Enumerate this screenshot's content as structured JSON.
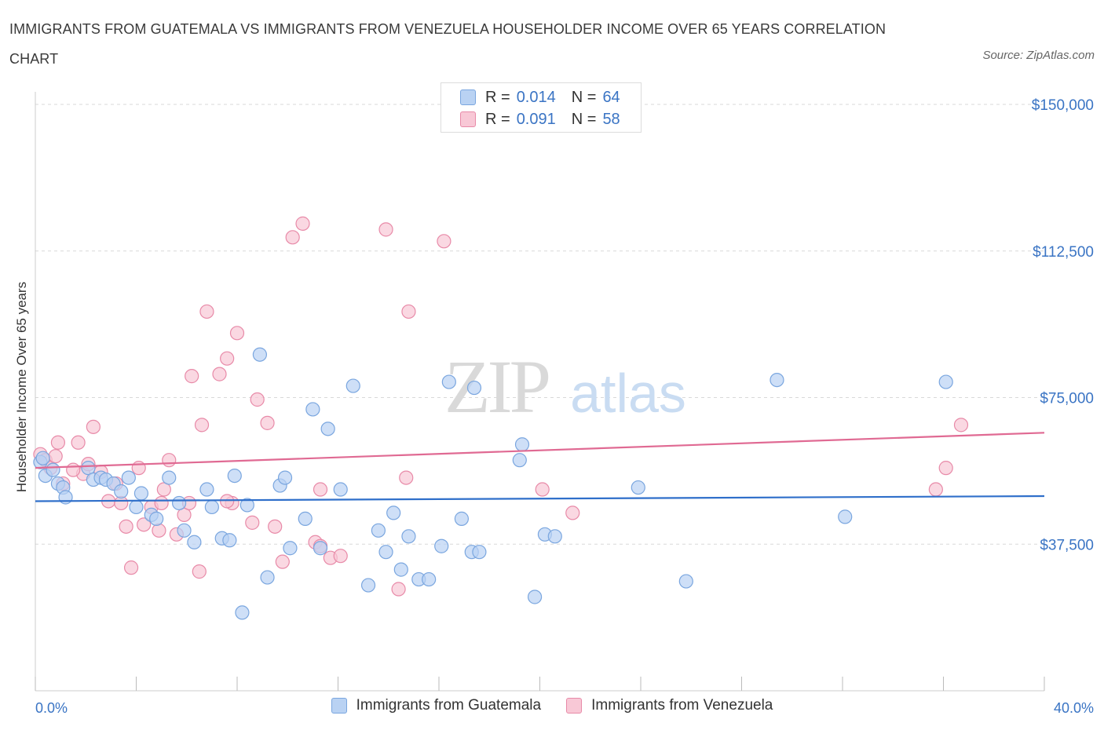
{
  "title": "IMMIGRANTS FROM GUATEMALA VS IMMIGRANTS FROM VENEZUELA HOUSEHOLDER INCOME OVER 65 YEARS CORRELATION CHART",
  "source": "Source: ZipAtlas.com",
  "legend_top": {
    "rows": [
      {
        "r_label": "R =",
        "r_value": "0.014",
        "n_label": "N =",
        "n_value": "64"
      },
      {
        "r_label": "R =",
        "r_value": "0.091",
        "n_label": "N =",
        "n_value": "58"
      }
    ]
  },
  "legend_bottom": [
    "Immigrants from Guatemala",
    "Immigrants from Venezuela"
  ],
  "colors": {
    "guatemala_fill": "#b9d2f3",
    "guatemala_stroke": "#7aa6df",
    "guatemala_line": "#2f6fca",
    "venezuela_fill": "#f8c8d6",
    "venezuela_stroke": "#e88aa8",
    "venezuela_line": "#e06a93",
    "tick_text": "#3a74c4",
    "grid": "#d8d8d8"
  },
  "chart_data": {
    "type": "scatter",
    "title": "IMMIGRANTS FROM GUATEMALA VS IMMIGRANTS FROM VENEZUELA HOUSEHOLDER INCOME OVER 65 YEARS CORRELATION CHART",
    "xlabel": "",
    "ylabel": "Householder Income Over 65 years",
    "xlim": [
      0,
      40
    ],
    "ylim": [
      0,
      150000
    ],
    "x_tick_labels": [
      "0.0%",
      "40.0%"
    ],
    "y_ticks": [
      37500,
      75000,
      112500,
      150000
    ],
    "y_tick_labels": [
      "$37,500",
      "$75,000",
      "$112,500",
      "$150,000"
    ],
    "grid": true,
    "legend_position": "top-center",
    "series": [
      {
        "name": "Immigrants from Guatemala",
        "points": [
          [
            0.2,
            58500
          ],
          [
            0.3,
            59500
          ],
          [
            0.4,
            55000
          ],
          [
            0.7,
            56500
          ],
          [
            0.9,
            53000
          ],
          [
            1.1,
            52000
          ],
          [
            1.2,
            49500
          ],
          [
            2.1,
            57000
          ],
          [
            2.3,
            54000
          ],
          [
            2.6,
            54500
          ],
          [
            2.8,
            54000
          ],
          [
            3.1,
            53000
          ],
          [
            3.7,
            54500
          ],
          [
            3.4,
            51000
          ],
          [
            4.2,
            50500
          ],
          [
            4.0,
            47000
          ],
          [
            4.6,
            45000
          ],
          [
            4.8,
            44000
          ],
          [
            5.3,
            54500
          ],
          [
            5.7,
            48000
          ],
          [
            5.9,
            41000
          ],
          [
            6.3,
            38000
          ],
          [
            6.8,
            51500
          ],
          [
            7.0,
            47000
          ],
          [
            7.4,
            39000
          ],
          [
            7.7,
            38500
          ],
          [
            7.9,
            55000
          ],
          [
            8.4,
            47500
          ],
          [
            8.9,
            86000
          ],
          [
            9.7,
            52500
          ],
          [
            9.9,
            54500
          ],
          [
            10.1,
            36500
          ],
          [
            10.7,
            44000
          ],
          [
            11.0,
            72000
          ],
          [
            11.3,
            36500
          ],
          [
            11.6,
            67000
          ],
          [
            12.1,
            51500
          ],
          [
            12.6,
            78000
          ],
          [
            13.2,
            27000
          ],
          [
            13.6,
            41000
          ],
          [
            13.9,
            35500
          ],
          [
            14.2,
            45500
          ],
          [
            14.5,
            31000
          ],
          [
            14.8,
            39500
          ],
          [
            15.2,
            28500
          ],
          [
            15.6,
            28500
          ],
          [
            16.1,
            37000
          ],
          [
            16.4,
            79000
          ],
          [
            16.9,
            44000
          ],
          [
            17.3,
            35500
          ],
          [
            17.6,
            35500
          ],
          [
            17.4,
            77500
          ],
          [
            19.3,
            63000
          ],
          [
            19.2,
            59000
          ],
          [
            19.8,
            24000
          ],
          [
            20.2,
            40000
          ],
          [
            20.6,
            39500
          ],
          [
            23.9,
            52000
          ],
          [
            25.8,
            28000
          ],
          [
            32.1,
            44500
          ],
          [
            29.4,
            79500
          ],
          [
            36.1,
            79000
          ],
          [
            8.2,
            20000
          ],
          [
            9.2,
            29000
          ]
        ]
      },
      {
        "name": "Immigrants from Venezuela",
        "points": [
          [
            0.2,
            60500
          ],
          [
            0.4,
            59000
          ],
          [
            0.6,
            57000
          ],
          [
            0.9,
            63500
          ],
          [
            1.1,
            53000
          ],
          [
            1.7,
            63500
          ],
          [
            1.9,
            55500
          ],
          [
            2.1,
            58000
          ],
          [
            2.3,
            67500
          ],
          [
            2.6,
            56000
          ],
          [
            2.9,
            48500
          ],
          [
            3.2,
            53000
          ],
          [
            3.4,
            48000
          ],
          [
            3.6,
            42000
          ],
          [
            3.8,
            31500
          ],
          [
            4.1,
            57000
          ],
          [
            4.3,
            42500
          ],
          [
            4.6,
            47000
          ],
          [
            4.9,
            41000
          ],
          [
            5.1,
            51500
          ],
          [
            5.3,
            59000
          ],
          [
            5.6,
            40000
          ],
          [
            5.9,
            45000
          ],
          [
            6.1,
            48000
          ],
          [
            6.2,
            80500
          ],
          [
            6.5,
            30500
          ],
          [
            6.6,
            68000
          ],
          [
            6.8,
            97000
          ],
          [
            7.3,
            81000
          ],
          [
            7.6,
            85000
          ],
          [
            7.8,
            48000
          ],
          [
            8.0,
            91500
          ],
          [
            8.6,
            43000
          ],
          [
            8.8,
            74500
          ],
          [
            9.2,
            68500
          ],
          [
            9.5,
            42000
          ],
          [
            9.8,
            33000
          ],
          [
            10.2,
            116000
          ],
          [
            10.6,
            119500
          ],
          [
            11.1,
            38000
          ],
          [
            11.3,
            37000
          ],
          [
            11.7,
            34000
          ],
          [
            13.9,
            118000
          ],
          [
            14.4,
            26000
          ],
          [
            14.7,
            54500
          ],
          [
            14.8,
            97000
          ],
          [
            16.2,
            115000
          ],
          [
            20.1,
            51500
          ],
          [
            21.3,
            45500
          ],
          [
            35.7,
            51500
          ],
          [
            36.1,
            57000
          ],
          [
            36.7,
            68000
          ],
          [
            0.8,
            60000
          ],
          [
            1.5,
            56500
          ],
          [
            5.0,
            48000
          ],
          [
            7.6,
            48500
          ],
          [
            11.3,
            51500
          ],
          [
            12.1,
            34500
          ]
        ]
      }
    ],
    "trend_lines": [
      {
        "name": "Immigrants from Guatemala",
        "from": [
          0,
          48500
        ],
        "to": [
          40,
          49800
        ]
      },
      {
        "name": "Immigrants from Venezuela",
        "from": [
          0,
          57000
        ],
        "to": [
          40,
          66000
        ]
      }
    ]
  }
}
